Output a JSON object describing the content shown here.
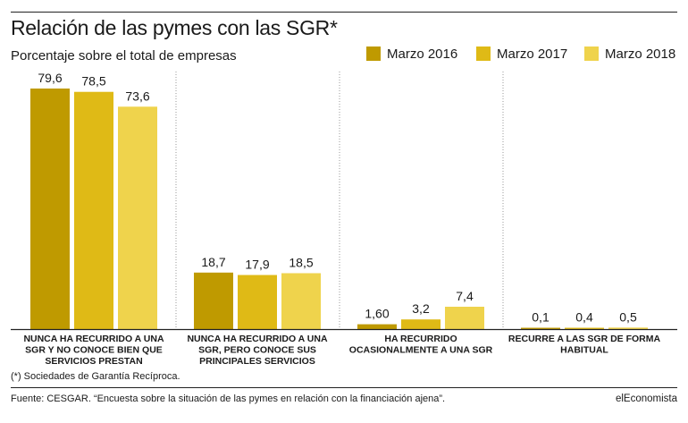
{
  "header": {
    "title": "Relación de las pymes con las SGR*",
    "subtitle": "Porcentaje sobre el total de empresas"
  },
  "legend": [
    {
      "name": "Marzo 2016",
      "color": "#bf9a00"
    },
    {
      "name": "Marzo 2017",
      "color": "#dfba16"
    },
    {
      "name": "Marzo 2018",
      "color": "#efd34c"
    }
  ],
  "chart_data": {
    "type": "bar",
    "title": "Relación de las pymes con las SGR*",
    "subtitle": "Porcentaje sobre el total de empresas",
    "ylim": [
      0,
      80
    ],
    "grid": false,
    "legend_position": "top-right",
    "categories": [
      [
        "NUNCA HA RECURRIDO A UNA",
        "SGR Y NO CONOCE BIEN QUE",
        "SERVICIOS PRESTAN"
      ],
      [
        "NUNCA HA RECURRIDO A UNA",
        "SGR, PERO CONOCE SUS",
        "PRINCIPALES SERVICIOS"
      ],
      [
        "HA RECURRIDO",
        "OCASIONALMENTE A UNA SGR"
      ],
      [
        "RECURRE A LAS SGR DE FORMA",
        "HABITUAL"
      ]
    ],
    "series": [
      {
        "name": "Marzo 2016",
        "values": [
          79.6,
          18.7,
          1.6,
          0.1
        ],
        "labels": [
          "79,6",
          "18,7",
          "1,60",
          "0,1"
        ]
      },
      {
        "name": "Marzo 2017",
        "values": [
          78.5,
          17.9,
          3.2,
          0.4
        ],
        "labels": [
          "78,5",
          "17,9",
          "3,2",
          "0,4"
        ]
      },
      {
        "name": "Marzo 2018",
        "values": [
          73.6,
          18.5,
          7.4,
          0.5
        ],
        "labels": [
          "73,6",
          "18,5",
          "7,4",
          "0,5"
        ]
      }
    ]
  },
  "footer": {
    "footnote": "(*) Sociedades de Garantía Recíproca.",
    "source": "Fuente: CESGAR. “Encuesta sobre la situación de las pymes en relación con la financiación ajena”.",
    "brand": "elEconomista"
  }
}
